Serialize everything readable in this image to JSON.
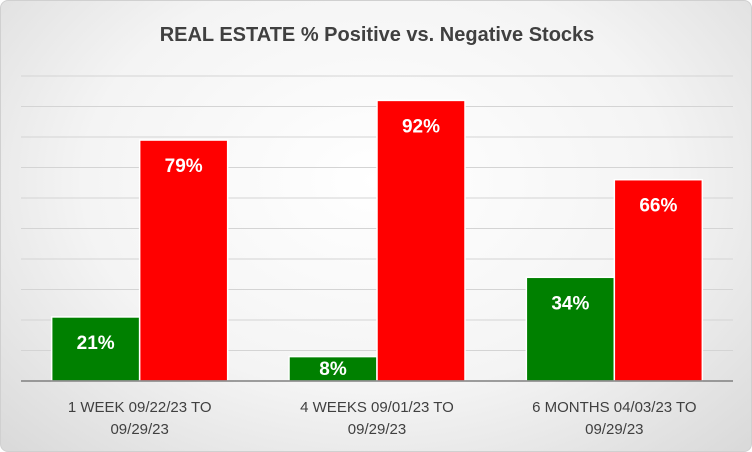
{
  "chart_data": {
    "type": "bar",
    "title": "REAL ESTATE % Positive vs. Negative Stocks",
    "categories": [
      [
        "1 WEEK 09/22/23 TO",
        "09/29/23"
      ],
      [
        "4 WEEKS 09/01/23 TO",
        "09/29/23"
      ],
      [
        "6 MONTHS 04/03/23 TO",
        "09/29/23"
      ]
    ],
    "series": [
      {
        "values": [
          21,
          8,
          34
        ],
        "labels": [
          "21%",
          "8%",
          "34%"
        ],
        "color": "#008000"
      },
      {
        "values": [
          79,
          92,
          66
        ],
        "labels": [
          "79%",
          "92%",
          "66%"
        ],
        "color": "#ff0000"
      }
    ],
    "ylim": [
      0,
      100
    ],
    "grid": true,
    "legend": "none"
  }
}
